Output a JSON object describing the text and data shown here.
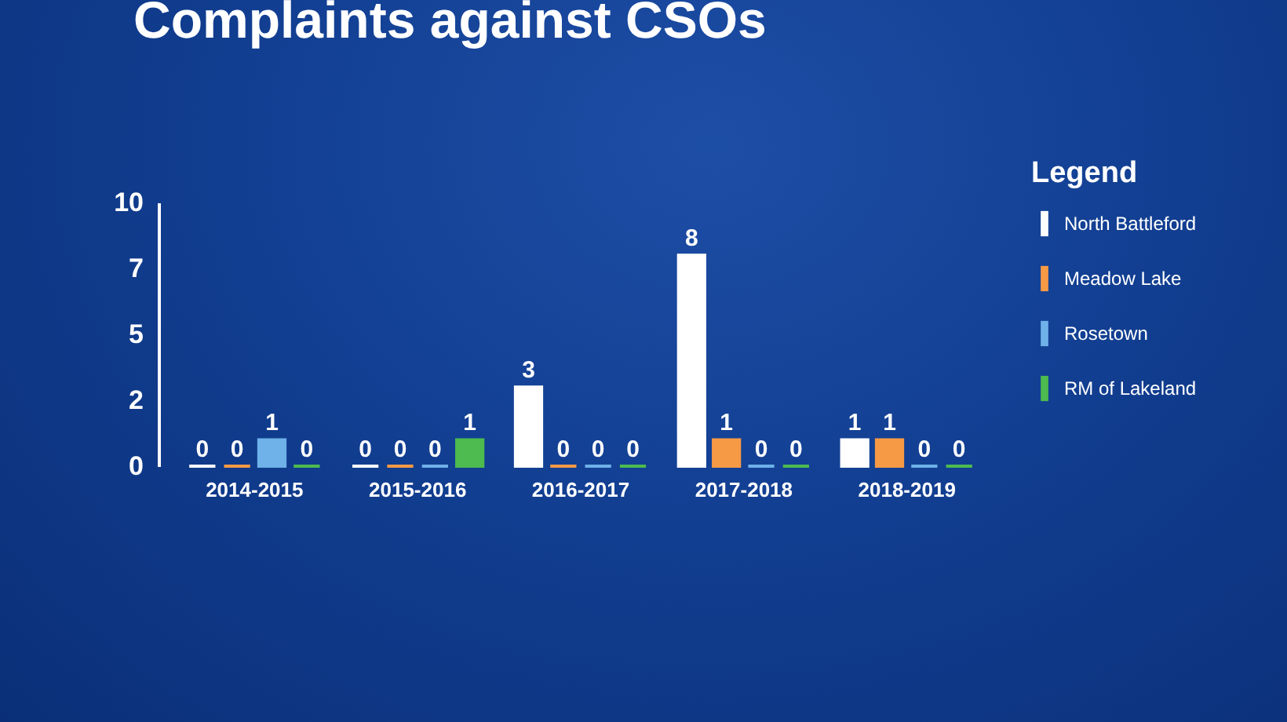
{
  "chart_data": {
    "type": "bar",
    "title": "Complaints against CSOs",
    "legend_title": "Legend",
    "categories": [
      "2014-2015",
      "2015-2016",
      "2016-2017",
      "2017-2018",
      "2018-2019"
    ],
    "series": [
      {
        "name": "North Battleford",
        "color": "#ffffff",
        "values": [
          0,
          0,
          3,
          8,
          1
        ]
      },
      {
        "name": "Meadow Lake",
        "color": "#f79a45",
        "values": [
          0,
          0,
          0,
          1,
          1
        ]
      },
      {
        "name": "Rosetown",
        "color": "#6fb1e9",
        "values": [
          1,
          0,
          0,
          0,
          0
        ]
      },
      {
        "name": "RM of Lakeland",
        "color": "#4dbb4f",
        "values": [
          0,
          1,
          0,
          0,
          0
        ]
      }
    ],
    "ylim": [
      0,
      10
    ],
    "yticks": [
      0,
      {
        "value": 2.5,
        "label": "2"
      },
      5,
      {
        "value": 7.5,
        "label": "7"
      },
      10
    ],
    "data_labels": true,
    "legend": "right"
  }
}
